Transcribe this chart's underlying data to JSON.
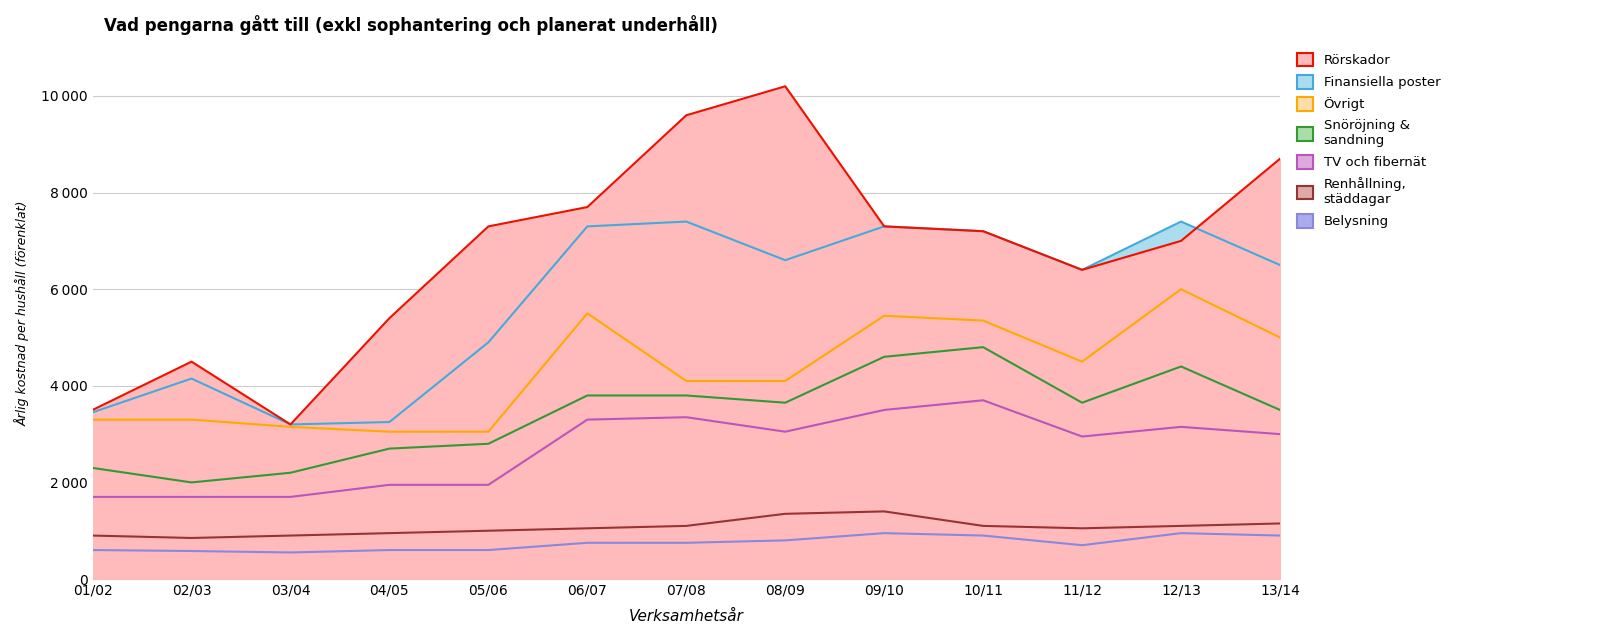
{
  "title": "Vad pengarna gått till (exkl sophantering och planerat underhåll)",
  "xlabel": "Verksamhetsår",
  "ylabel": "Årlig kostnad per hushåll (förenklat)",
  "years": [
    "01/02",
    "02/03",
    "03/04",
    "04/05",
    "05/06",
    "06/07",
    "07/08",
    "08/09",
    "09/10",
    "10/11",
    "11/12",
    "12/13",
    "13/14"
  ],
  "series": {
    "Belysning": [
      600,
      580,
      550,
      600,
      600,
      750,
      750,
      800,
      950,
      900,
      700,
      950,
      900
    ],
    "Renhållning, städdagar": [
      900,
      850,
      900,
      950,
      1000,
      1050,
      1100,
      1350,
      1400,
      1100,
      1050,
      1100,
      1150
    ],
    "TV och fibernät": [
      1700,
      1700,
      1700,
      1950,
      1950,
      3300,
      3350,
      3050,
      3500,
      3700,
      2950,
      3150,
      3000
    ],
    "Snöröjning & sandning": [
      2300,
      2000,
      2200,
      2700,
      2800,
      3800,
      3800,
      3650,
      4600,
      4800,
      3650,
      4400,
      3500
    ],
    "Övrigt": [
      3300,
      3300,
      3150,
      3050,
      3050,
      5500,
      4100,
      4100,
      5450,
      5350,
      4500,
      6000,
      5000
    ],
    "Finansiella poster": [
      3450,
      4150,
      3200,
      3250,
      4900,
      7300,
      7400,
      6600,
      7300,
      7200,
      6400,
      7400,
      6500
    ],
    "Rörskador": [
      3500,
      4500,
      3200,
      5400,
      7300,
      7700,
      9600,
      10200,
      7300,
      7200,
      6400,
      7000,
      8700
    ]
  },
  "colors": {
    "Belysning": "#8888dd",
    "Renhållning, städdagar": "#993333",
    "TV och fibernät": "#bb55bb",
    "Snöröjning & sandning": "#339933",
    "Övrigt": "#ffaa00",
    "Finansiella poster": "#44aadd",
    "Rörskador": "#ee1100"
  },
  "fill_colors": {
    "Belysning": "#aaaaee",
    "Renhållning, städdagar": "#ddaaaa",
    "TV och fibernät": "#ddaadd",
    "Snöröjning & sandning": "#aaddaa",
    "Övrigt": "#ffddaa",
    "Finansiella poster": "#aaddee",
    "Rörskador": "#ffbbbb"
  },
  "ylim": [
    0,
    11000
  ],
  "yticks": [
    0,
    2000,
    4000,
    6000,
    8000,
    10000
  ],
  "background_color": "#ffffff",
  "grid_color": "#cccccc",
  "draw_order": [
    "Belysning",
    "Renhållning, städdagar",
    "TV och fibernät",
    "Snöröjning & sandning",
    "Övrigt",
    "Finansiella poster",
    "Rörskador"
  ],
  "legend_order": [
    "Rörskador",
    "Finansiella poster",
    "Övrigt",
    "Snöröjning & sandning",
    "TV och fibernät",
    "Renhållning, städdagar",
    "Belysning"
  ],
  "legend_labels": {
    "Belysning": "Belysning",
    "Renhållning, städdagar": "Renhållning,\nstäddagar",
    "TV och fibernät": "TV och fibernät",
    "Snöröjning & sandning": "Snöröjning &\nsandning",
    "Övrigt": "Övrigt",
    "Finansiella poster": "Finansiella poster",
    "Rörskador": "Rörskador"
  }
}
